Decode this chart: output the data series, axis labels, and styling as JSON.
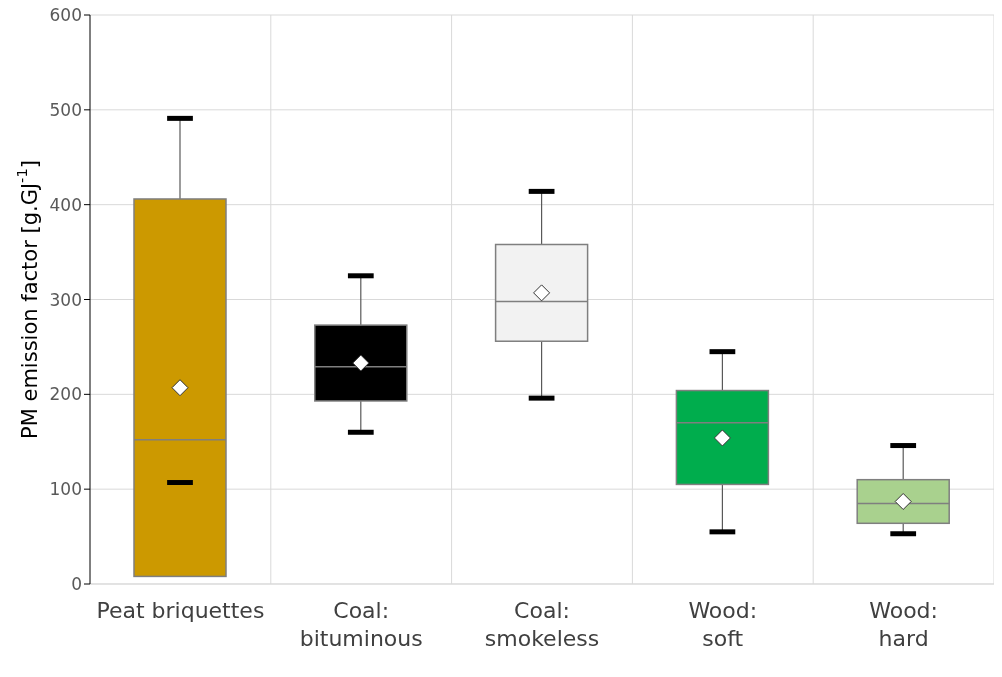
{
  "chart_data": {
    "type": "box",
    "ylabel": "PM emission factor [g.GJ$^{-1}$]",
    "categories": [
      "Peat briquettes",
      "Coal: bituminous",
      "Coal: smokeless",
      "Wood: soft",
      "Wood: hard"
    ],
    "colors": [
      "#cc9900",
      "#000000",
      "#f2f2f2",
      "#00ad4d",
      "#a9d18e"
    ],
    "boxes": [
      {
        "low": 107,
        "q1": 8,
        "median": 152,
        "q3": 406,
        "high": 491,
        "mean": 207
      },
      {
        "low": 160,
        "q1": 193,
        "median": 229,
        "q3": 273,
        "high": 325,
        "mean": 233
      },
      {
        "low": 196,
        "q1": 256,
        "median": 298,
        "q3": 358,
        "high": 414,
        "mean": 307
      },
      {
        "low": 55,
        "q1": 105,
        "median": 170,
        "q3": 204,
        "high": 245,
        "mean": 154
      },
      {
        "low": 53,
        "q1": 64,
        "median": 85,
        "q3": 110,
        "high": 146,
        "mean": 87
      }
    ],
    "ylim": [
      0,
      600
    ],
    "yticks": [
      0,
      100,
      200,
      300,
      400,
      500,
      600
    ],
    "grid": true,
    "marker": "diamond"
  }
}
